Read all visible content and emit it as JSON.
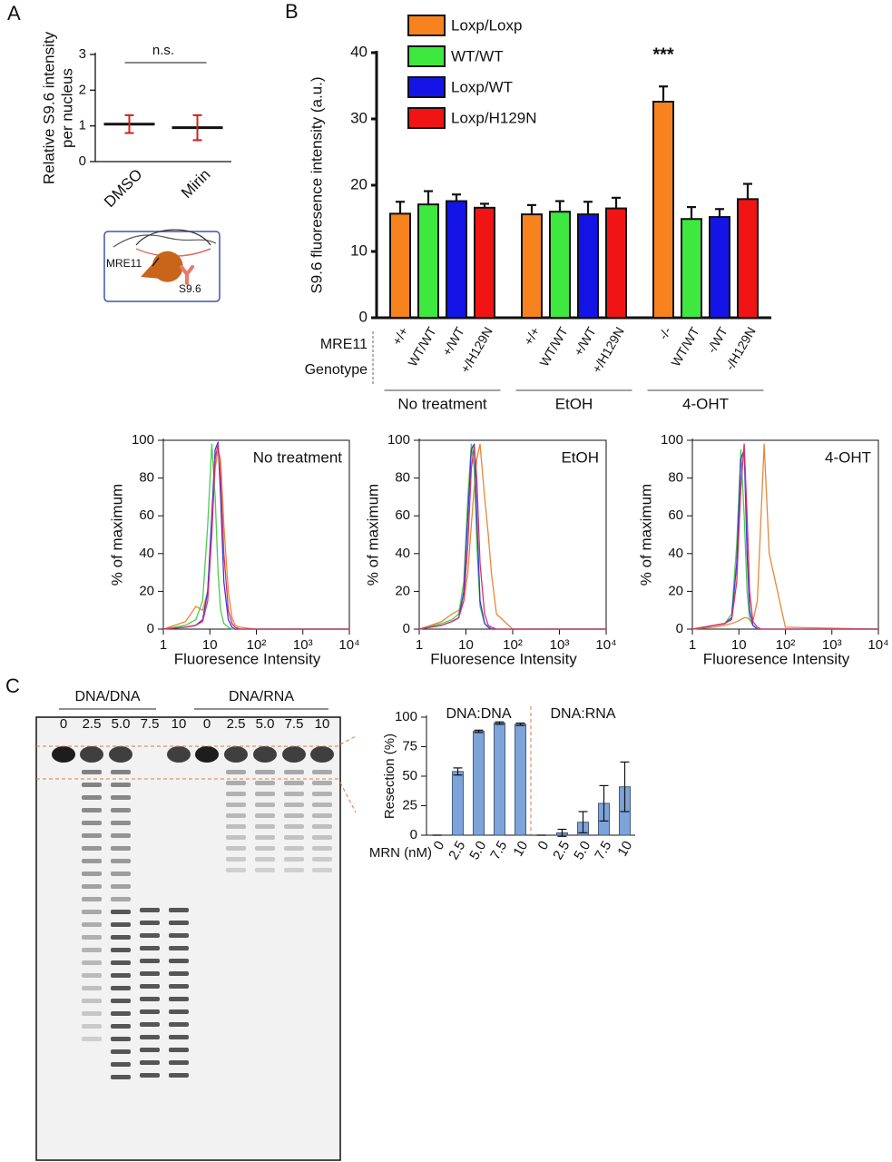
{
  "panel_labels": {
    "a": "A",
    "b": "B",
    "c": "C"
  },
  "diagram": {
    "labels": [
      "MRE11",
      "S9.6"
    ]
  },
  "gel": {
    "groups": [
      "DNA/DNA",
      "DNA/RNA"
    ],
    "lanes": [
      [
        "0",
        "2.5",
        "5.0",
        "7.5",
        "10"
      ],
      [
        "0",
        "2.5",
        "5.0",
        "7.5",
        "10"
      ]
    ]
  },
  "chart_data": [
    {
      "type": "dot",
      "categories": [
        "DMSO",
        "Mirin"
      ],
      "values": [
        1.05,
        0.95
      ],
      "errors": [
        0.25,
        0.35
      ],
      "color": "#d02020",
      "ylabel_lines": [
        "Relative S9.6 intensity",
        "per nucleus"
      ],
      "annotation": "n.s.",
      "ylim": [
        0,
        3
      ],
      "yticks": [
        0,
        1,
        2,
        3
      ]
    },
    {
      "type": "bar",
      "categories": [
        "No treatment",
        "EtOH",
        "4-OHT"
      ],
      "series": [
        {
          "name": "Loxp/Loxp",
          "color": "#f7821e",
          "values": [
            15.7,
            15.6,
            32.6
          ],
          "errors": [
            1.8,
            1.4,
            2.3
          ]
        },
        {
          "name": "WT/WT",
          "color": "#3ee83e",
          "values": [
            17.1,
            16.0,
            14.9
          ],
          "errors": [
            2.0,
            1.6,
            1.8
          ]
        },
        {
          "name": "Loxp/WT",
          "color": "#1414e6",
          "values": [
            17.6,
            15.6,
            15.2
          ],
          "errors": [
            1.0,
            1.9,
            1.2
          ]
        },
        {
          "name": "Loxp/H129N",
          "color": "#f01414",
          "values": [
            16.6,
            16.5,
            17.9
          ],
          "errors": [
            0.6,
            1.6,
            2.3
          ]
        }
      ],
      "bar_labels": [
        [
          "+/+",
          "WT/WT",
          "+/WT",
          "+/H129N"
        ],
        [
          "+/+",
          "WT/WT",
          "+/WT",
          "+/H129N"
        ],
        [
          "-/-",
          "WT/WT",
          "-/WT",
          "-/H129N"
        ]
      ],
      "row_labels": [
        "MRE11",
        "Genotype"
      ],
      "annotation": "***",
      "legend": "top-left",
      "ylabel": "S9.6 fluoresence intensity (a.u.)",
      "ylim": [
        0,
        40
      ],
      "yticks": [
        0,
        10,
        20,
        30,
        40
      ]
    },
    {
      "type": "line",
      "title": "No treatment",
      "xlabel": "Fluoresence Intensity",
      "ylabel": "% of maximum",
      "log_x": true,
      "x": [
        1,
        3,
        5,
        7,
        9,
        11,
        13,
        15,
        17,
        20,
        25,
        30,
        35,
        45,
        100,
        10000
      ],
      "series": [
        {
          "color": "#e8873a",
          "values": [
            0,
            4,
            12,
            10,
            20,
            55,
            85,
            95,
            90,
            55,
            20,
            6,
            2,
            1,
            0,
            0
          ]
        },
        {
          "color": "#4ccc4c",
          "values": [
            0,
            2,
            5,
            15,
            55,
            98,
            70,
            30,
            10,
            3,
            1,
            0,
            0,
            0,
            0,
            0
          ]
        },
        {
          "color": "#3a3ad8",
          "values": [
            0,
            1,
            2,
            5,
            20,
            60,
            95,
            99,
            70,
            25,
            5,
            1,
            0,
            0,
            0,
            0
          ]
        },
        {
          "color": "#d8306a",
          "values": [
            0,
            1,
            2,
            4,
            15,
            50,
            90,
            98,
            80,
            40,
            10,
            3,
            1,
            0,
            0,
            0
          ]
        }
      ],
      "xlim": [
        1,
        10000
      ],
      "xticks": [
        1,
        10,
        {
          "value": 100,
          "label": "10²"
        },
        {
          "value": 1000,
          "label": "10³"
        },
        {
          "value": 10000,
          "label": "10⁴"
        }
      ],
      "ylim": [
        0,
        100
      ],
      "yticks": [
        0,
        20,
        40,
        60,
        80,
        100
      ]
    },
    {
      "type": "line",
      "title": "EtOH",
      "xlabel": "Fluoresence Intensity",
      "ylabel": "% of maximum",
      "log_x": true,
      "x": [
        1,
        3,
        5,
        7,
        9,
        11,
        13,
        15,
        17,
        20,
        25,
        30,
        35,
        45,
        100,
        10000
      ],
      "series": [
        {
          "color": "#e8873a",
          "values": [
            0,
            4,
            8,
            10,
            15,
            30,
            55,
            75,
            90,
            98,
            70,
            50,
            30,
            8,
            0,
            0
          ]
        },
        {
          "color": "#4ccc4c",
          "values": [
            0,
            3,
            5,
            8,
            25,
            70,
            98,
            85,
            45,
            12,
            3,
            1,
            0,
            0,
            0,
            0
          ]
        },
        {
          "color": "#3a3ad8",
          "values": [
            0,
            2,
            4,
            6,
            20,
            60,
            95,
            98,
            60,
            15,
            3,
            1,
            0,
            0,
            0,
            0
          ]
        },
        {
          "color": "#d8306a",
          "values": [
            0,
            2,
            4,
            6,
            15,
            45,
            85,
            97,
            80,
            35,
            8,
            2,
            1,
            0,
            0,
            0
          ]
        }
      ],
      "xlim": [
        1,
        10000
      ],
      "xticks": [
        1,
        10,
        {
          "value": 100,
          "label": "10²"
        },
        {
          "value": 1000,
          "label": "10³"
        },
        {
          "value": 10000,
          "label": "10⁴"
        }
      ],
      "ylim": [
        0,
        100
      ],
      "yticks": [
        0,
        20,
        40,
        60,
        80,
        100
      ]
    },
    {
      "type": "line",
      "title": "4-OHT",
      "xlabel": "Fluoresence Intensity",
      "ylabel": "% of maximum",
      "log_x": true,
      "x": [
        1,
        3,
        5,
        7,
        9,
        11,
        13,
        15,
        17,
        20,
        25,
        30,
        35,
        45,
        100,
        10000
      ],
      "series": [
        {
          "color": "#e8873a",
          "values": [
            0,
            1,
            2,
            3,
            4,
            5,
            6,
            6,
            5,
            4,
            15,
            60,
            98,
            40,
            1,
            0
          ]
        },
        {
          "color": "#4ccc4c",
          "values": [
            0,
            2,
            3,
            8,
            45,
            95,
            60,
            20,
            5,
            2,
            0,
            0,
            0,
            0,
            0,
            0
          ]
        },
        {
          "color": "#3a3ad8",
          "values": [
            0,
            2,
            3,
            6,
            35,
            90,
            95,
            40,
            10,
            2,
            0,
            0,
            0,
            0,
            0,
            0
          ]
        },
        {
          "color": "#d8306a",
          "values": [
            0,
            2,
            3,
            5,
            25,
            75,
            98,
            60,
            20,
            4,
            1,
            0,
            0,
            0,
            0,
            0
          ]
        }
      ],
      "xlim": [
        1,
        10000
      ],
      "xticks": [
        1,
        10,
        {
          "value": 100,
          "label": "10²"
        },
        {
          "value": 1000,
          "label": "10³"
        },
        {
          "value": 10000,
          "label": "10⁴"
        }
      ],
      "ylim": [
        0,
        100
      ],
      "yticks": [
        0,
        20,
        40,
        60,
        80,
        100
      ]
    },
    {
      "type": "bar",
      "color": "#7ea3d8",
      "ylabel": "Resection (%)",
      "xlabel": "MRN (nM)",
      "groups": [
        {
          "name": "DNA:DNA",
          "categories": [
            "0",
            "2.5",
            "5.0",
            "7.5",
            "10"
          ],
          "values": [
            0,
            54,
            88,
            95,
            94
          ],
          "errors": [
            0,
            3,
            1,
            1,
            1
          ]
        },
        {
          "name": "DNA:RNA",
          "categories": [
            "0",
            "2.5",
            "5.0",
            "7.5",
            "10"
          ],
          "values": [
            0,
            2,
            11,
            27,
            41
          ],
          "errors": [
            0,
            3,
            9,
            15,
            21
          ]
        }
      ],
      "ylim": [
        0,
        100
      ],
      "yticks": [
        0,
        25,
        50,
        75,
        100
      ]
    }
  ]
}
